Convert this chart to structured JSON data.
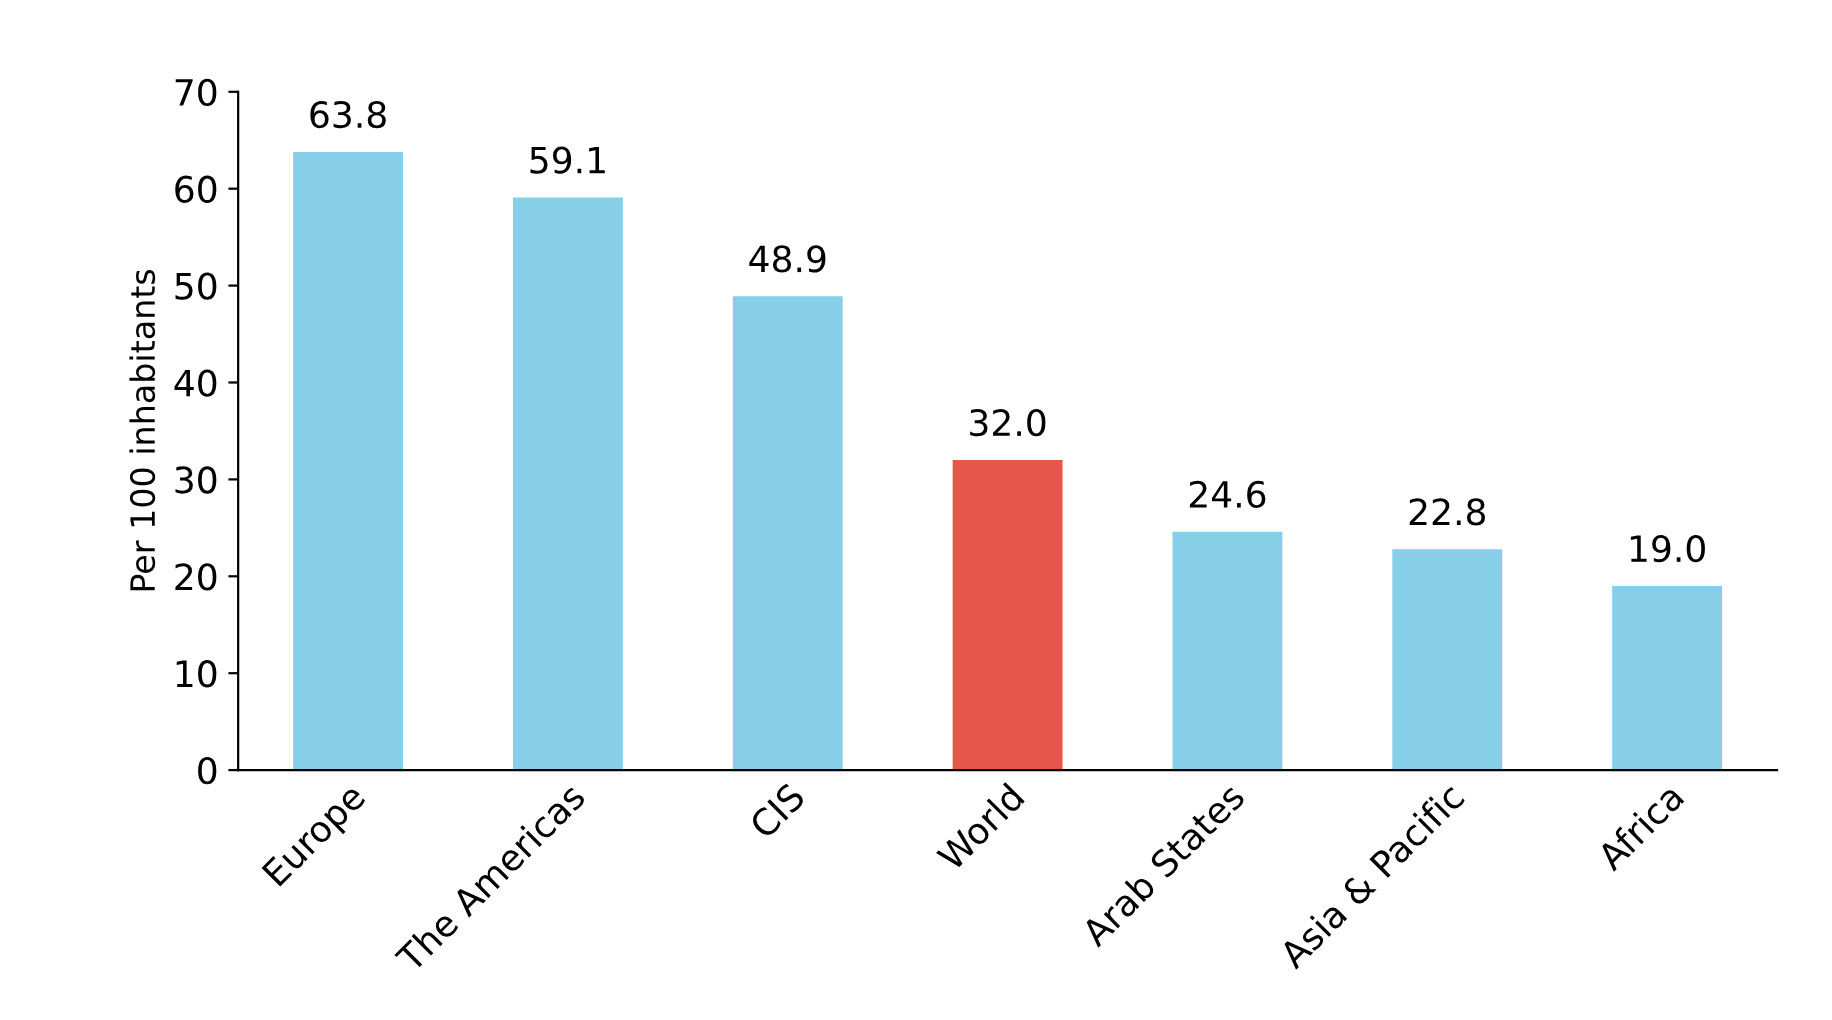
{
  "chart_data": {
    "type": "bar",
    "ylabel": "Per 100 inhabitants",
    "categories": [
      "Europe",
      "The Americas",
      "CIS",
      "World",
      "Arab States",
      "Asia & Pacific",
      "Africa"
    ],
    "values": [
      63.8,
      59.1,
      48.9,
      32.0,
      24.6,
      22.8,
      19.0
    ],
    "value_labels": [
      "63.8",
      "59.1",
      "48.9",
      "32.0",
      "24.6",
      "22.8",
      "19.0"
    ],
    "colors": [
      "#87cfe8",
      "#87cfe8",
      "#87cfe8",
      "#e8564b",
      "#87cfe8",
      "#87cfe8",
      "#87cfe8"
    ],
    "ylim": [
      0,
      70
    ],
    "yticks": [
      0,
      10,
      20,
      30,
      40,
      50,
      60,
      70
    ],
    "grid": false
  }
}
